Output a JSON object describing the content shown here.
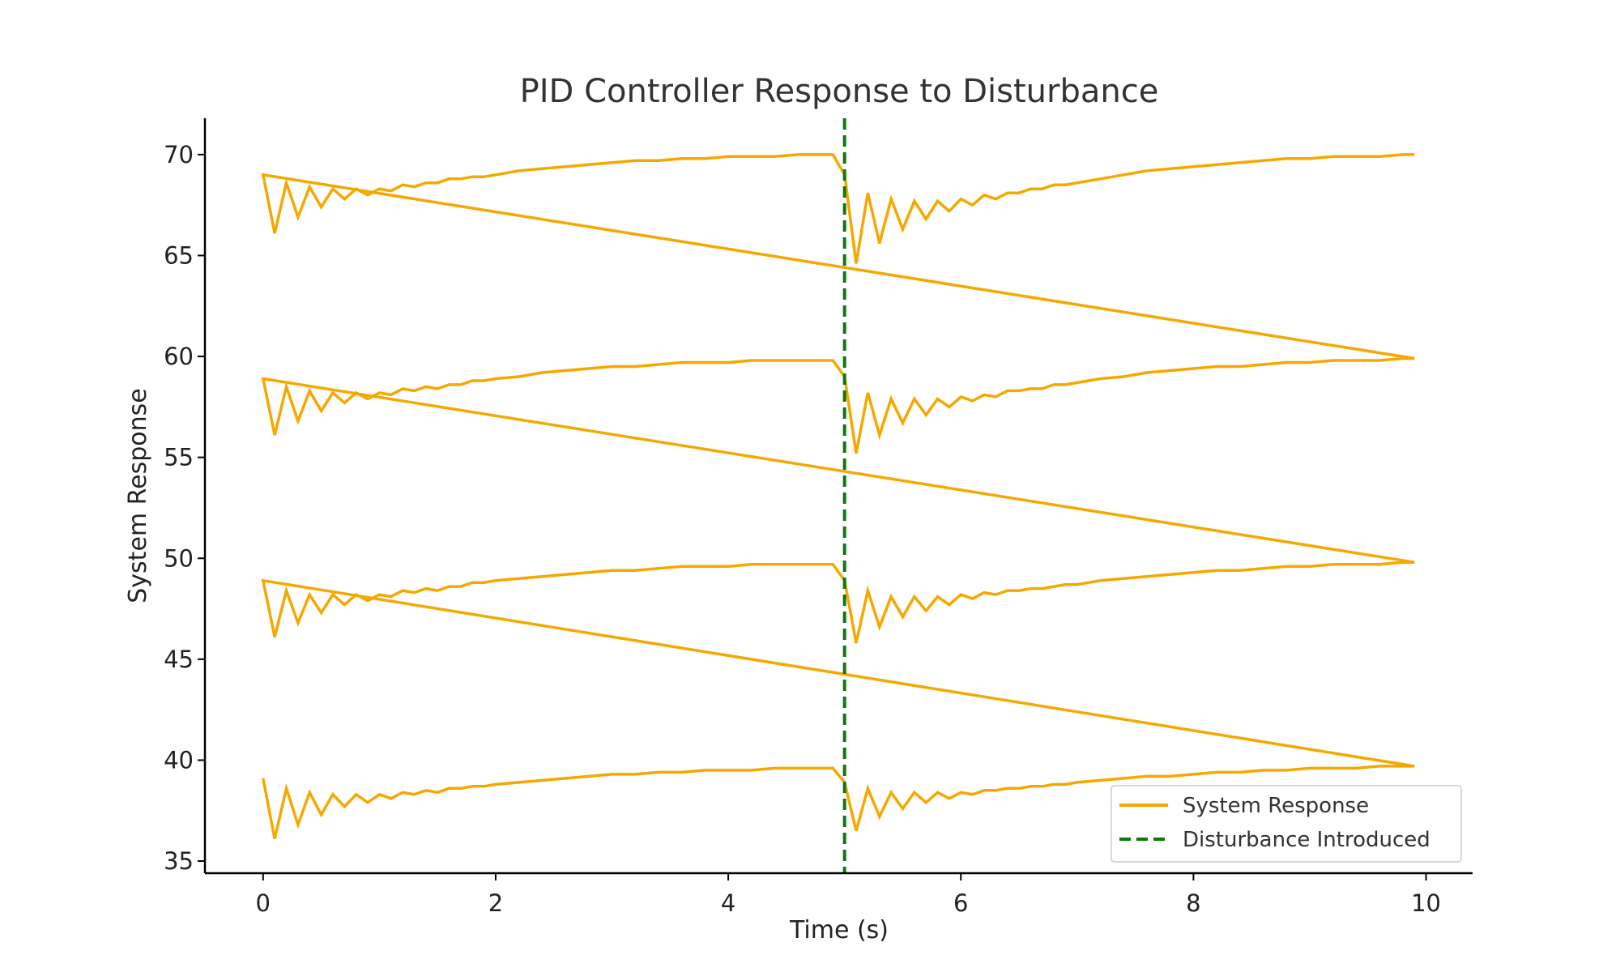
{
  "chart_data": {
    "type": "line",
    "title": "PID Controller Response to Disturbance",
    "xlabel": "Time (s)",
    "ylabel": "System Response",
    "xlim": [
      -0.5,
      10.4
    ],
    "ylim": [
      34.4,
      71.8
    ],
    "xticks": [
      0,
      2,
      4,
      6,
      8,
      10
    ],
    "yticks": [
      35,
      40,
      45,
      50,
      55,
      60,
      65,
      70
    ],
    "grid": false,
    "legend_position": "lower-right",
    "disturbance_time": 5.0,
    "colors": {
      "response": "#f5a800",
      "disturbance": "#0a7a0a",
      "axis": "#000000"
    },
    "series": [
      {
        "name": "System Response",
        "style": "solid",
        "note_levels": [
          39.0,
          49.0,
          59.0,
          69.0
        ],
        "x": [
          0.0,
          0.1,
          0.2,
          0.3,
          0.4,
          0.5,
          0.6,
          0.7,
          0.8,
          0.9,
          1.0,
          1.1,
          1.2,
          1.3,
          1.4,
          1.5,
          1.6,
          1.7,
          1.8,
          1.9,
          2.0,
          2.2,
          2.4,
          2.6,
          2.8,
          3.0,
          3.2,
          3.4,
          3.6,
          3.8,
          4.0,
          4.2,
          4.4,
          4.6,
          4.8,
          4.9,
          5.0,
          5.1,
          5.2,
          5.3,
          5.4,
          5.5,
          5.6,
          5.7,
          5.8,
          5.9,
          6.0,
          6.1,
          6.2,
          6.3,
          6.4,
          6.5,
          6.6,
          6.7,
          6.8,
          6.9,
          7.0,
          7.2,
          7.4,
          7.6,
          7.8,
          8.0,
          8.2,
          8.4,
          8.6,
          8.8,
          9.0,
          9.2,
          9.4,
          9.6,
          9.8,
          9.9
        ],
        "segments": [
          {
            "y": [
              39.1,
              36.1,
              38.6,
              36.8,
              38.4,
              37.3,
              38.3,
              37.7,
              38.3,
              37.9,
              38.3,
              38.1,
              38.4,
              38.3,
              38.5,
              38.4,
              38.6,
              38.6,
              38.7,
              38.7,
              38.8,
              38.9,
              39.0,
              39.1,
              39.2,
              39.3,
              39.3,
              39.4,
              39.4,
              39.5,
              39.5,
              39.5,
              39.6,
              39.6,
              39.6,
              39.6,
              38.9,
              36.5,
              38.6,
              37.2,
              38.4,
              37.6,
              38.4,
              37.9,
              38.4,
              38.1,
              38.4,
              38.3,
              38.5,
              38.5,
              38.6,
              38.6,
              38.7,
              38.7,
              38.8,
              38.8,
              38.9,
              39.0,
              39.1,
              39.2,
              39.2,
              39.3,
              39.4,
              39.4,
              39.5,
              39.5,
              39.6,
              39.6,
              39.6,
              39.7,
              39.7,
              39.7
            ]
          },
          {
            "y": [
              48.9,
              46.1,
              48.4,
              46.8,
              48.2,
              47.3,
              48.2,
              47.7,
              48.2,
              47.9,
              48.2,
              48.1,
              48.4,
              48.3,
              48.5,
              48.4,
              48.6,
              48.6,
              48.8,
              48.8,
              48.9,
              49.0,
              49.1,
              49.2,
              49.3,
              49.4,
              49.4,
              49.5,
              49.6,
              49.6,
              49.6,
              49.7,
              49.7,
              49.7,
              49.7,
              49.7,
              48.9,
              45.8,
              48.4,
              46.6,
              48.1,
              47.1,
              48.1,
              47.4,
              48.1,
              47.7,
              48.2,
              48.0,
              48.3,
              48.2,
              48.4,
              48.4,
              48.5,
              48.5,
              48.6,
              48.7,
              48.7,
              48.9,
              49.0,
              49.1,
              49.2,
              49.3,
              49.4,
              49.4,
              49.5,
              49.6,
              49.6,
              49.7,
              49.7,
              49.7,
              49.8,
              49.8
            ]
          },
          {
            "y": [
              58.9,
              56.1,
              58.5,
              56.8,
              58.3,
              57.3,
              58.2,
              57.7,
              58.2,
              57.9,
              58.2,
              58.1,
              58.4,
              58.3,
              58.5,
              58.4,
              58.6,
              58.6,
              58.8,
              58.8,
              58.9,
              59.0,
              59.2,
              59.3,
              59.4,
              59.5,
              59.5,
              59.6,
              59.7,
              59.7,
              59.7,
              59.8,
              59.8,
              59.8,
              59.8,
              59.8,
              59.0,
              55.2,
              58.2,
              56.1,
              57.9,
              56.7,
              57.9,
              57.1,
              57.9,
              57.5,
              58.0,
              57.8,
              58.1,
              58.0,
              58.3,
              58.3,
              58.4,
              58.4,
              58.6,
              58.6,
              58.7,
              58.9,
              59.0,
              59.2,
              59.3,
              59.4,
              59.5,
              59.5,
              59.6,
              59.7,
              59.7,
              59.8,
              59.8,
              59.8,
              59.9,
              59.9
            ]
          },
          {
            "y": [
              69.0,
              66.1,
              68.6,
              66.9,
              68.4,
              67.4,
              68.3,
              67.8,
              68.3,
              68.0,
              68.3,
              68.2,
              68.5,
              68.4,
              68.6,
              68.6,
              68.8,
              68.8,
              68.9,
              68.9,
              69.0,
              69.2,
              69.3,
              69.4,
              69.5,
              69.6,
              69.7,
              69.7,
              69.8,
              69.8,
              69.9,
              69.9,
              69.9,
              70.0,
              70.0,
              70.0,
              69.0,
              64.6,
              68.1,
              65.6,
              67.8,
              66.3,
              67.7,
              66.8,
              67.7,
              67.2,
              67.8,
              67.5,
              68.0,
              67.8,
              68.1,
              68.1,
              68.3,
              68.3,
              68.5,
              68.5,
              68.6,
              68.8,
              69.0,
              69.2,
              69.3,
              69.4,
              69.5,
              69.6,
              69.7,
              69.8,
              69.8,
              69.9,
              69.9,
              69.9,
              70.0,
              70.0
            ]
          }
        ]
      },
      {
        "name": "Disturbance Introduced",
        "style": "dashed",
        "x": [
          5.0,
          5.0
        ],
        "y": [
          34.4,
          71.8
        ]
      }
    ]
  }
}
